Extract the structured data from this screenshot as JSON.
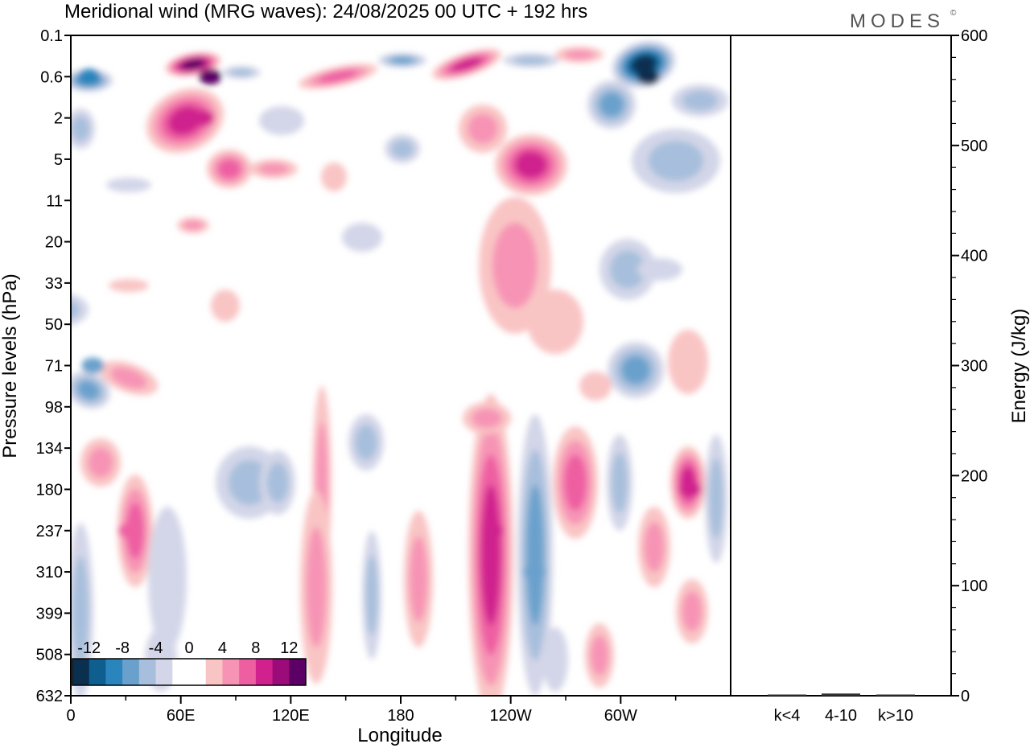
{
  "chart_data": {
    "type": "heatmap",
    "title": "Meridional wind (MRG waves):  24/08/2025  00 UTC  + 192 hrs",
    "brand": "MODES",
    "brand_mark": "©",
    "xlabel": "Longitude",
    "ylabel": "Pressure levels (hPa)",
    "x_ticks": [
      "0",
      "60E",
      "120E",
      "180",
      "120W",
      "60W"
    ],
    "x_tick_values": [
      0,
      60,
      120,
      180,
      240,
      300
    ],
    "xlim": [
      0,
      360
    ],
    "y_ticks": [
      "0.1",
      "0.6",
      "2",
      "5",
      "11",
      "20",
      "33",
      "50",
      "71",
      "98",
      "134",
      "180",
      "237",
      "310",
      "399",
      "508",
      "632"
    ],
    "colorbar": {
      "labels": [
        "-12",
        "-8",
        "-4",
        "0",
        "4",
        "8",
        "12"
      ],
      "label_values": [
        -12,
        -8,
        -4,
        0,
        4,
        8,
        12
      ],
      "colors": [
        "#0a2f4f",
        "#0e5f8f",
        "#2b85bd",
        "#6aa1cc",
        "#a7bfdc",
        "#d3d6e8",
        "#ffffff",
        "#ffffff",
        "#f9c4c4",
        "#f794b5",
        "#ee5fa2",
        "#d0218e",
        "#9b0b79",
        "#5c0066"
      ]
    },
    "features": [
      {
        "lon": 76,
        "level": "0.6",
        "value": 14,
        "label": "upper positive max"
      },
      {
        "lon": 72,
        "level": "2",
        "value": 9,
        "label": "positive"
      },
      {
        "lon": 10,
        "level": "0.6",
        "value": -9,
        "label": "negative"
      },
      {
        "lon": 315,
        "level": "0.6",
        "value": -12,
        "label": "negative"
      },
      {
        "lon": 250,
        "level": "5",
        "value": 9,
        "label": "positive"
      },
      {
        "lon": 230,
        "level": "237",
        "value": 8,
        "label": "positive column"
      },
      {
        "lon": 253,
        "level": "310",
        "value": -6,
        "label": "negative column"
      },
      {
        "lon": 338,
        "level": "180",
        "value": 9,
        "label": "positive"
      },
      {
        "lon": 12,
        "level": "71",
        "value": -7,
        "label": "negative"
      },
      {
        "lon": 32,
        "level": "237",
        "value": 7,
        "label": "positive"
      }
    ],
    "energy_panel": {
      "ylabel": "Energy (J/kg)",
      "ylim": [
        0,
        600
      ],
      "y_ticks": [
        "0",
        "100",
        "200",
        "300",
        "400",
        "500",
        "600"
      ],
      "y_tick_values": [
        0,
        100,
        200,
        300,
        400,
        500,
        600
      ],
      "categories": [
        "k<4",
        "4-10",
        "k>10"
      ],
      "values": [
        0.5,
        2,
        0.3
      ]
    }
  }
}
